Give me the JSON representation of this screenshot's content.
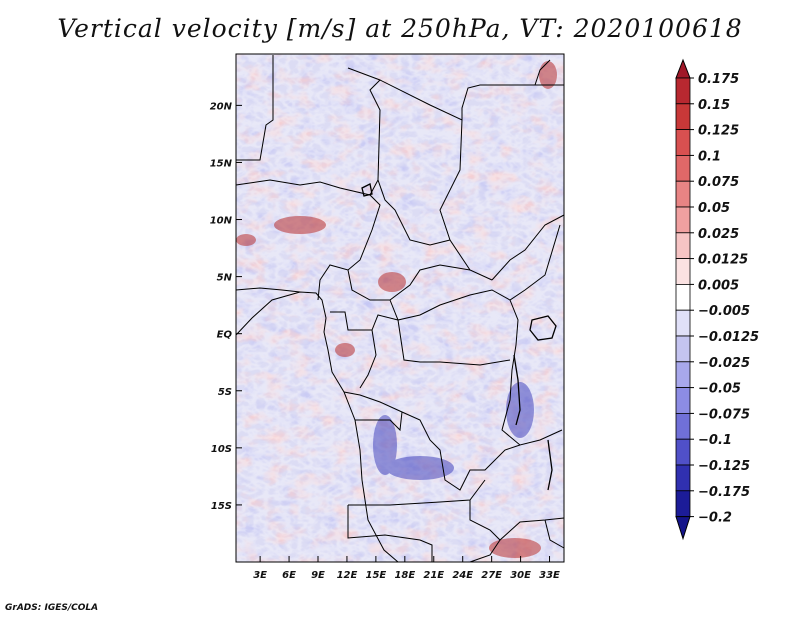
{
  "title": "Vertical velocity [m/s] at 250hPa, VT: 2020100618",
  "credit": "GrADS: IGES/COLA",
  "map": {
    "y_ticks": [
      "20N",
      "15N",
      "10N",
      "5N",
      "EQ",
      "5S",
      "10S",
      "15S"
    ],
    "x_ticks": [
      "3E",
      "6E",
      "9E",
      "12E",
      "15E",
      "18E",
      "21E",
      "24E",
      "27E",
      "30E",
      "33E"
    ],
    "lon_range": [
      0.5,
      34.5
    ],
    "lat_range": [
      -20,
      24.5
    ]
  },
  "colorbar": {
    "labels": [
      "0.175",
      "0.15",
      "0.125",
      "0.1",
      "0.075",
      "0.05",
      "0.025",
      "0.0125",
      "0.005",
      "−0.005",
      "−0.0125",
      "−0.025",
      "−0.05",
      "−0.075",
      "−0.1",
      "−0.125",
      "−0.175",
      "−0.2"
    ],
    "colors": [
      "#a01828",
      "#b82830",
      "#c83838",
      "#d85050",
      "#e06868",
      "#e88484",
      "#f0a0a0",
      "#f6c4c4",
      "#fbe2e2",
      "#ffffff",
      "#e0e0f8",
      "#c4c4f0",
      "#a8a8ec",
      "#8c8ce4",
      "#7070d8",
      "#5050c8",
      "#3030b0",
      "#1c1c98",
      "#14148a"
    ]
  }
}
